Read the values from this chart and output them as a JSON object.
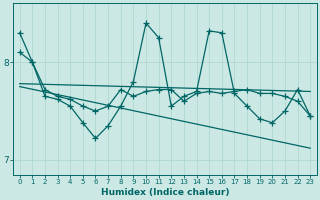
{
  "xlabel": "Humidex (Indice chaleur)",
  "bg_color": "#cce8e4",
  "grid_color": "#aad4ce",
  "line_color": "#006666",
  "xlim": [
    -0.5,
    23.5
  ],
  "ylim": [
    6.85,
    8.6
  ],
  "yticks": [
    7,
    8
  ],
  "xticks": [
    0,
    1,
    2,
    3,
    4,
    5,
    6,
    7,
    8,
    9,
    10,
    11,
    12,
    13,
    14,
    15,
    16,
    17,
    18,
    19,
    20,
    21,
    22,
    23
  ],
  "series1_x": [
    0,
    1,
    2,
    3,
    4,
    5,
    6,
    7,
    8,
    9,
    10,
    11,
    12,
    13,
    14,
    15,
    16,
    17,
    18,
    19,
    20,
    21,
    22,
    23
  ],
  "series1_y": [
    8.1,
    8.0,
    7.72,
    7.65,
    7.62,
    7.55,
    7.5,
    7.55,
    7.72,
    7.65,
    7.7,
    7.72,
    7.72,
    7.6,
    7.68,
    7.7,
    7.68,
    7.7,
    7.72,
    7.68,
    7.68,
    7.65,
    7.6,
    7.45
  ],
  "series2_x": [
    0,
    1,
    2,
    3,
    4,
    5,
    6,
    7,
    8,
    9,
    10,
    11,
    12,
    13,
    14,
    15,
    16,
    17,
    18,
    19,
    20,
    21,
    22,
    23
  ],
  "series2_y": [
    8.3,
    8.0,
    7.65,
    7.62,
    7.55,
    7.38,
    7.22,
    7.35,
    7.55,
    7.8,
    8.4,
    8.25,
    7.55,
    7.65,
    7.7,
    8.32,
    8.3,
    7.68,
    7.55,
    7.42,
    7.38,
    7.5,
    7.72,
    7.45
  ],
  "trend1_x": [
    0,
    23
  ],
  "trend1_y": [
    7.78,
    7.7
  ],
  "trend2_x": [
    0,
    23
  ],
  "trend2_y": [
    7.75,
    7.12
  ],
  "marker": "+",
  "markersize": 4,
  "linewidth": 0.9
}
